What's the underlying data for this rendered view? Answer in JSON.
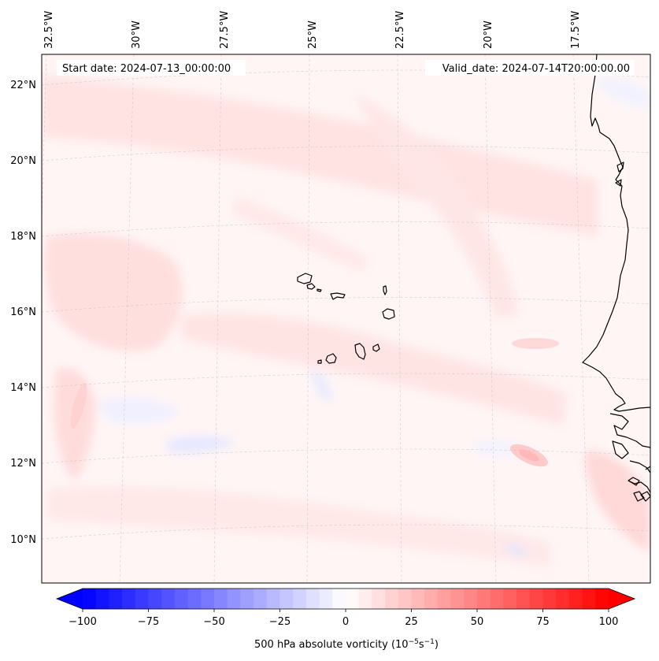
{
  "header": {
    "start_date": "Start date: 2024-07-13_00:00:00",
    "valid_date": "Valid_date: 2024-07-14T20:00:00.00"
  },
  "map": {
    "lon_labels": [
      "32.5°W",
      "30°W",
      "27.5°W",
      "25°W",
      "22.5°W",
      "20°W",
      "17.5°W"
    ],
    "lat_labels": [
      "22°N",
      "20°N",
      "18°N",
      "16°N",
      "14°N",
      "12°N",
      "10°N"
    ]
  },
  "colorbar": {
    "title": "500 hPa absolute vorticity (10",
    "title_exp1": "−5",
    "title_mid": "s",
    "title_exp2": "−1",
    "title_end": ")",
    "ticks": [
      "−100",
      "−75",
      "−50",
      "−25",
      "0",
      "25",
      "50",
      "75",
      "100"
    ],
    "tick_values": [
      -100,
      -75,
      -50,
      -25,
      0,
      25,
      50,
      75,
      100
    ],
    "range": [
      -100,
      100
    ],
    "colormap": "bwr",
    "colors": {
      "negative": "#0000ff",
      "zero": "#ffffff",
      "positive": "#ff0000"
    }
  }
}
